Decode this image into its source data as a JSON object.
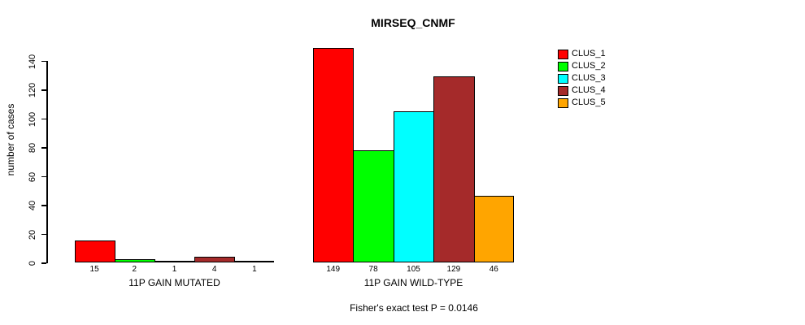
{
  "chart_data": {
    "type": "bar",
    "title": "MIRSEQ_CNMF",
    "ylabel": "number of cases",
    "ylim": [
      0,
      140
    ],
    "yticks": [
      0,
      20,
      40,
      60,
      80,
      100,
      120,
      140
    ],
    "grid": false,
    "legend_position": "right",
    "categories": [
      "11P GAIN MUTATED",
      "11P GAIN WILD-TYPE"
    ],
    "series": [
      {
        "name": "CLUS_1",
        "color": "#FF0000",
        "values": [
          15,
          149
        ]
      },
      {
        "name": "CLUS_2",
        "color": "#00FF00",
        "values": [
          2,
          78
        ]
      },
      {
        "name": "CLUS_3",
        "color": "#00FFFF",
        "values": [
          1,
          105
        ]
      },
      {
        "name": "CLUS_4",
        "color": "#A52A2A",
        "values": [
          4,
          129
        ]
      },
      {
        "name": "CLUS_5",
        "color": "#FFA500",
        "values": [
          1,
          46
        ]
      }
    ],
    "bar_value_labels_shown": true,
    "annotation": "Fisher's exact test P = 0.0146"
  }
}
